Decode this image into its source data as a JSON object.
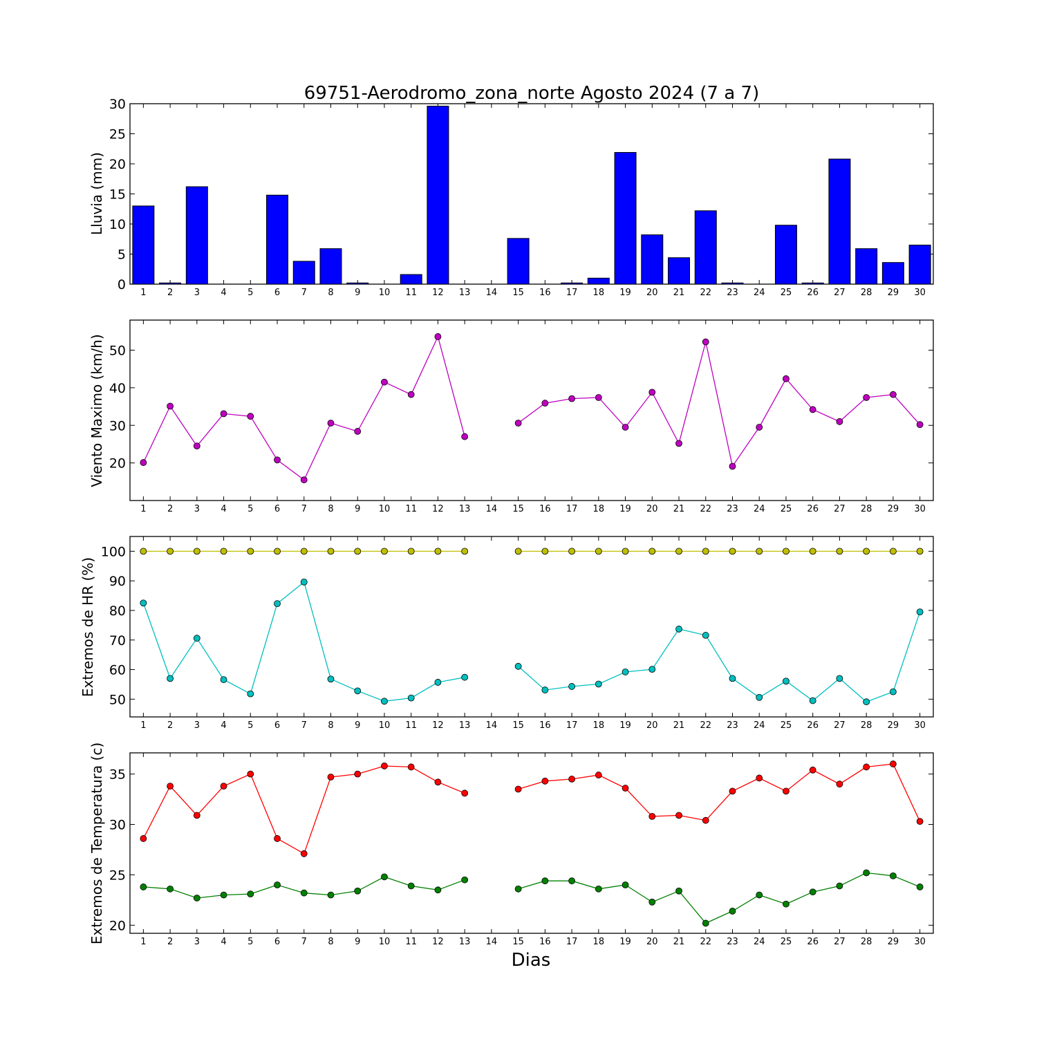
{
  "title": "69751-Aerodromo_zona_norte Agosto 2024  (7 a 7)",
  "xlabel": "Dias",
  "colors": {
    "rain": "#0000ff",
    "wind": "#bf00bf",
    "hr_max": "#bfbf00",
    "hr_min": "#00bfbf",
    "t_max": "#ff0000",
    "t_min": "#008000"
  },
  "chart_data": [
    {
      "type": "bar",
      "ylabel": "Lluvia (mm)",
      "ylim": [
        0,
        30
      ],
      "yticks": [
        0,
        5,
        10,
        15,
        20,
        25,
        30
      ],
      "categories": [
        1,
        2,
        3,
        4,
        5,
        6,
        7,
        8,
        9,
        10,
        11,
        12,
        13,
        14,
        15,
        16,
        17,
        18,
        19,
        20,
        21,
        22,
        23,
        24,
        25,
        26,
        27,
        28,
        29,
        30
      ],
      "series": [
        {
          "values": [
            13.0,
            0.2,
            16.2,
            0,
            0,
            14.8,
            3.8,
            5.9,
            0.2,
            0,
            1.6,
            29.6,
            0,
            0,
            7.6,
            0,
            0.2,
            1.0,
            21.9,
            8.2,
            4.4,
            12.2,
            0.2,
            0,
            9.8,
            0.2,
            20.8,
            5.9,
            3.6,
            6.5
          ],
          "color": "rain"
        }
      ]
    },
    {
      "type": "line",
      "ylabel": "Viento Maximo (km/h)",
      "ylim": [
        10,
        58
      ],
      "yticks": [
        20,
        30,
        40,
        50
      ],
      "categories": [
        1,
        2,
        3,
        4,
        5,
        6,
        7,
        8,
        9,
        10,
        11,
        12,
        13,
        14,
        15,
        16,
        17,
        18,
        19,
        20,
        21,
        22,
        23,
        24,
        25,
        26,
        27,
        28,
        29,
        30
      ],
      "series": [
        {
          "values": [
            20.1,
            35.1,
            24.5,
            33.1,
            32.4,
            20.8,
            15.5,
            30.6,
            28.4,
            41.5,
            38.2,
            53.6,
            27.0,
            null,
            30.6,
            35.9,
            37.1,
            37.4,
            29.5,
            38.8,
            25.2,
            52.2,
            19.1,
            29.5,
            42.4,
            34.2,
            31.0,
            37.4,
            38.2,
            30.2
          ],
          "color": "wind"
        }
      ]
    },
    {
      "type": "line",
      "ylabel": "Extremos de HR (%)",
      "ylim": [
        44,
        105
      ],
      "yticks": [
        50,
        60,
        70,
        80,
        90,
        100
      ],
      "categories": [
        1,
        2,
        3,
        4,
        5,
        6,
        7,
        8,
        9,
        10,
        11,
        12,
        13,
        14,
        15,
        16,
        17,
        18,
        19,
        20,
        21,
        22,
        23,
        24,
        25,
        26,
        27,
        28,
        29,
        30
      ],
      "series": [
        {
          "values": [
            100,
            100,
            100,
            100,
            100,
            100,
            100,
            100,
            100,
            100,
            100,
            100,
            100,
            null,
            100,
            100,
            100,
            100,
            100,
            100,
            100,
            100,
            100,
            100,
            100,
            100,
            100,
            100,
            100,
            100
          ],
          "color": "hr_max"
        },
        {
          "values": [
            82.5,
            57.0,
            70.6,
            56.6,
            51.8,
            82.3,
            89.6,
            56.8,
            52.8,
            49.3,
            50.4,
            55.7,
            57.4,
            null,
            61.1,
            53.1,
            54.3,
            55.1,
            59.2,
            60.1,
            73.7,
            71.6,
            57.0,
            50.6,
            56.1,
            49.5,
            57.0,
            49.1,
            52.5,
            79.5
          ],
          "color": "hr_min"
        }
      ]
    },
    {
      "type": "line",
      "ylabel": "Extremos de Temperatura (c)",
      "ylim": [
        19.2,
        37.1
      ],
      "yticks": [
        20,
        25,
        30,
        35
      ],
      "categories": [
        1,
        2,
        3,
        4,
        5,
        6,
        7,
        8,
        9,
        10,
        11,
        12,
        13,
        14,
        15,
        16,
        17,
        18,
        19,
        20,
        21,
        22,
        23,
        24,
        25,
        26,
        27,
        28,
        29,
        30
      ],
      "series": [
        {
          "values": [
            28.6,
            33.8,
            30.9,
            33.8,
            35.0,
            28.6,
            27.1,
            34.7,
            35.0,
            35.8,
            35.7,
            34.2,
            33.1,
            null,
            33.5,
            34.3,
            34.5,
            34.9,
            33.6,
            30.8,
            30.9,
            30.4,
            33.3,
            34.6,
            33.3,
            35.4,
            34.0,
            35.7,
            36.0,
            30.3
          ],
          "color": "t_max"
        },
        {
          "values": [
            23.8,
            23.6,
            22.7,
            23.0,
            23.1,
            24.0,
            23.2,
            23.0,
            23.4,
            24.8,
            23.9,
            23.5,
            24.5,
            null,
            23.6,
            24.4,
            24.4,
            23.6,
            24.0,
            22.3,
            23.4,
            20.2,
            21.4,
            23.0,
            22.1,
            23.3,
            23.9,
            25.2,
            24.9,
            23.8
          ],
          "color": "t_min"
        }
      ]
    }
  ]
}
